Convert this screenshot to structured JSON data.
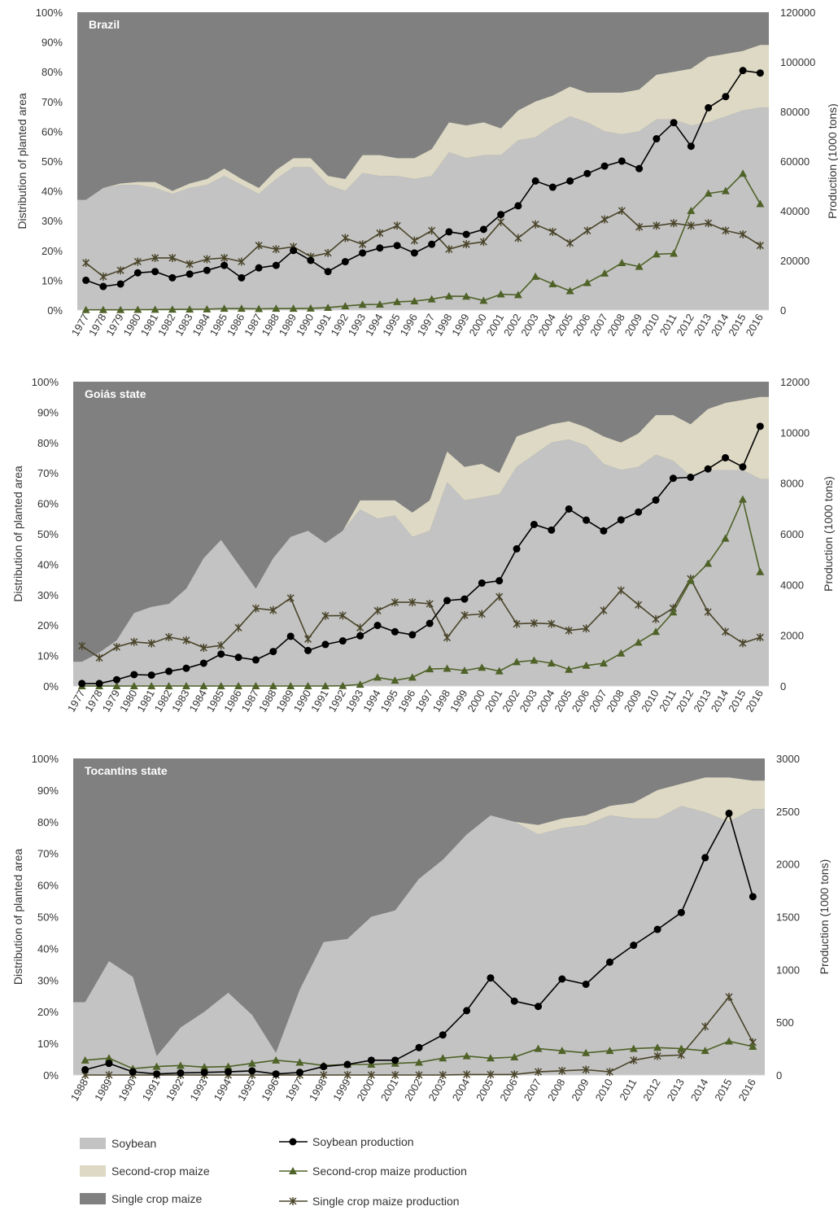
{
  "colors": {
    "soybean_area": "#c3c3c3",
    "second_crop_area": "#ddd9c4",
    "single_crop_area": "#808080",
    "soybean_line": "#000000",
    "second_crop_line": "#4f6228",
    "single_crop_line": "#4a452a"
  },
  "legend": {
    "soybean": "Soybean",
    "second_crop": "Second-crop maize",
    "single_crop": "Single crop maize",
    "soybean_prod": "Soybean production",
    "second_crop_prod": "Second-crop maize production",
    "single_crop_prod": "Single crop maize production"
  },
  "chart_data": [
    {
      "type": "area",
      "title": "Brazil",
      "ylabel": "Distribution of planted area",
      "y2label": "Production (1000 tons)",
      "ylim": [
        0,
        100
      ],
      "y2lim": [
        0,
        120000
      ],
      "yticks": [
        "0%",
        "10%",
        "20%",
        "30%",
        "40%",
        "50%",
        "60%",
        "70%",
        "80%",
        "90%",
        "100%"
      ],
      "y2ticks": [
        "0",
        "20000",
        "40000",
        "60000",
        "80000",
        "100000",
        "120000"
      ],
      "x": [
        "1977",
        "1978",
        "1979",
        "1980",
        "1981",
        "1982",
        "1983",
        "1984",
        "1985",
        "1986",
        "1987",
        "1988",
        "1989",
        "1990",
        "1991",
        "1992",
        "1993",
        "1994",
        "1995",
        "1996",
        "1997",
        "1998",
        "1999",
        "2000",
        "2001",
        "2002",
        "2003",
        "2004",
        "2005",
        "2006",
        "2007",
        "2008",
        "2009",
        "2010",
        "2011",
        "2012",
        "2013",
        "2014",
        "2015",
        "2016"
      ],
      "area_series": [
        {
          "name": "Soybean",
          "values": [
            37,
            41,
            42,
            42,
            41,
            39,
            41,
            42,
            45,
            42,
            39,
            44,
            48,
            48,
            42,
            40,
            46,
            45,
            45,
            44,
            45,
            53,
            51,
            52,
            52,
            57,
            58,
            62,
            65,
            63,
            60,
            59,
            60,
            64,
            64,
            62,
            63,
            65,
            67,
            68
          ]
        },
        {
          "name": "Second-crop maize",
          "values": [
            0,
            0,
            0.5,
            1,
            2,
            1,
            1.5,
            2,
            2.5,
            2,
            2,
            3,
            3,
            3,
            3,
            4,
            6,
            7,
            6,
            7,
            9,
            10,
            11,
            11,
            9,
            10,
            12,
            10,
            10,
            10,
            13,
            14,
            14,
            15,
            16,
            19,
            22,
            21,
            20,
            21
          ]
        },
        {
          "name": "Single crop maize",
          "values": [
            63,
            59,
            57.5,
            57,
            57,
            60,
            57.5,
            56,
            52.5,
            56,
            59,
            53,
            49,
            49,
            55,
            56,
            48,
            48,
            49,
            49,
            46,
            37,
            38,
            37,
            39,
            33,
            30,
            28,
            25,
            27,
            27,
            27,
            26,
            21,
            20,
            19,
            15,
            14,
            13,
            11
          ]
        }
      ],
      "line_series": [
        {
          "name": "Soybean production",
          "values": [
            12000,
            9500,
            10500,
            15000,
            15500,
            13000,
            14500,
            16000,
            18000,
            13000,
            17000,
            18000,
            24000,
            20000,
            15500,
            19500,
            23000,
            25000,
            26000,
            23000,
            26500,
            31500,
            30500,
            32500,
            38500,
            42000,
            52000,
            49500,
            52000,
            55000,
            58000,
            60000,
            57000,
            69000,
            75500,
            66000,
            81500,
            86000,
            96500,
            95500
          ]
        },
        {
          "name": "Second-crop maize production",
          "values": [
            100,
            100,
            100,
            150,
            200,
            250,
            300,
            350,
            600,
            600,
            500,
            600,
            600,
            700,
            1000,
            1600,
            2200,
            2300,
            3300,
            3600,
            4400,
            5600,
            5500,
            3800,
            6400,
            6100,
            13500,
            10500,
            7700,
            11000,
            14800,
            19000,
            17500,
            22500,
            22800,
            40000,
            47000,
            48000,
            55000,
            42800
          ]
        },
        {
          "name": "Single crop maize production",
          "values": [
            19000,
            13500,
            16000,
            19500,
            21000,
            21000,
            18500,
            20500,
            21000,
            19500,
            26000,
            24500,
            25500,
            21500,
            23000,
            29000,
            26500,
            31000,
            34000,
            28000,
            32000,
            24500,
            26500,
            27500,
            35500,
            29000,
            34500,
            31500,
            27000,
            32000,
            36500,
            40000,
            33500,
            34000,
            35000,
            34000,
            35000,
            32000,
            30500,
            26000
          ]
        }
      ]
    },
    {
      "type": "area",
      "title": "Goiás state",
      "ylabel": "Distribution of planted area",
      "y2label": "Production (1000 tons)",
      "ylim": [
        0,
        100
      ],
      "y2lim": [
        0,
        12000
      ],
      "yticks": [
        "0%",
        "10%",
        "20%",
        "30%",
        "40%",
        "50%",
        "60%",
        "70%",
        "80%",
        "90%",
        "100%"
      ],
      "y2ticks": [
        "0",
        "2000",
        "4000",
        "6000",
        "8000",
        "10000",
        "12000"
      ],
      "x": [
        "1977",
        "1978",
        "1979",
        "1980",
        "1981",
        "1982",
        "1983",
        "1984",
        "1985",
        "1986",
        "1987",
        "1988",
        "1989",
        "1990",
        "1991",
        "1992",
        "1993",
        "1994",
        "1995",
        "1996",
        "1997",
        "1998",
        "1999",
        "2000",
        "2001",
        "2002",
        "2003",
        "2004",
        "2005",
        "2006",
        "2007",
        "2008",
        "2009",
        "2010",
        "2011",
        "2012",
        "2013",
        "2014",
        "2015",
        "2016"
      ],
      "area_series": [
        {
          "name": "Soybean",
          "values": [
            8,
            11,
            15,
            24,
            26,
            27,
            32,
            42,
            48,
            40,
            32,
            42,
            49,
            51,
            47,
            51,
            58,
            55,
            56,
            49,
            51,
            67,
            61,
            62,
            63,
            72,
            76,
            80,
            81,
            79,
            73,
            71,
            72,
            76,
            74,
            69,
            71,
            71,
            71,
            68
          ]
        },
        {
          "name": "Second-crop maize",
          "values": [
            0,
            0,
            0,
            0,
            0,
            0,
            0,
            0,
            0,
            0,
            0,
            0,
            0,
            0,
            0,
            0,
            3,
            6,
            5,
            8,
            10,
            10,
            11,
            11,
            7,
            10,
            8,
            6,
            6,
            6,
            9,
            9,
            11,
            13,
            15,
            17,
            20,
            22,
            23,
            27
          ]
        },
        {
          "name": "Single crop maize",
          "values": [
            92,
            89,
            85,
            76,
            74,
            73,
            68,
            58,
            52,
            60,
            68,
            58,
            51,
            49,
            53,
            49,
            39,
            39,
            39,
            43,
            39,
            23,
            28,
            27,
            30,
            18,
            16,
            14,
            13,
            15,
            18,
            20,
            17,
            11,
            11,
            14,
            9,
            7,
            6,
            5
          ]
        }
      ],
      "line_series": [
        {
          "name": "Soybean production",
          "values": [
            100,
            100,
            250,
            450,
            430,
            580,
            700,
            900,
            1260,
            1130,
            1030,
            1360,
            1960,
            1400,
            1640,
            1780,
            1980,
            2390,
            2140,
            2020,
            2470,
            3370,
            3430,
            4060,
            4150,
            5410,
            6370,
            6150,
            6980,
            6540,
            6120,
            6550,
            6860,
            7330,
            8190,
            8230,
            8560,
            9000,
            8640,
            10240
          ]
        },
        {
          "name": "Second-crop maize production",
          "values": [
            0,
            0,
            0,
            0,
            0,
            0,
            0,
            0,
            0,
            0,
            0,
            0,
            0,
            0,
            0,
            10,
            60,
            340,
            220,
            340,
            670,
            690,
            610,
            730,
            590,
            950,
            1010,
            900,
            650,
            810,
            900,
            1290,
            1720,
            2140,
            2910,
            4150,
            4830,
            5820,
            7360,
            4500
          ]
        },
        {
          "name": "Single crop maize production",
          "values": [
            1580,
            1110,
            1540,
            1740,
            1680,
            1930,
            1800,
            1510,
            1600,
            2300,
            3060,
            2990,
            3470,
            1850,
            2770,
            2780,
            2300,
            2970,
            3300,
            3300,
            3240,
            1910,
            2790,
            2840,
            3520,
            2450,
            2480,
            2450,
            2190,
            2270,
            2980,
            3770,
            3200,
            2640,
            3070,
            4230,
            2920,
            2140,
            1690,
            1920
          ]
        }
      ]
    },
    {
      "type": "area",
      "title": "Tocantins state",
      "ylabel": "Distribution of planted area",
      "y2label": "Production (1000 tons)",
      "ylim": [
        0,
        100
      ],
      "y2lim": [
        0,
        3000
      ],
      "yticks": [
        "0%",
        "10%",
        "20%",
        "30%",
        "40%",
        "50%",
        "60%",
        "70%",
        "80%",
        "90%",
        "100%"
      ],
      "y2ticks": [
        "0",
        "500",
        "1000",
        "1500",
        "2000",
        "2500",
        "3000"
      ],
      "x": [
        "1988",
        "1989",
        "1990",
        "1991",
        "1992",
        "1993",
        "1994",
        "1995",
        "1996",
        "1997",
        "1998",
        "1999",
        "2000",
        "2001",
        "2002",
        "2003",
        "2004",
        "2005",
        "2006",
        "2007",
        "2008",
        "2009",
        "2010",
        "2011",
        "2012",
        "2013",
        "2014",
        "2015",
        "2016"
      ],
      "area_series": [
        {
          "name": "Soybean",
          "values": [
            23,
            36,
            31,
            6,
            15,
            20,
            26,
            19,
            7,
            27,
            42,
            43,
            50,
            52,
            62,
            68,
            76,
            82,
            80,
            76,
            78,
            79,
            82,
            81,
            81,
            85,
            83,
            80,
            84
          ]
        },
        {
          "name": "Second-crop maize",
          "values": [
            0,
            0,
            0,
            0,
            0,
            0,
            0,
            0,
            0,
            0,
            0,
            0,
            0,
            0,
            0,
            0,
            0,
            0,
            0,
            3,
            3,
            3,
            3,
            5,
            9,
            7,
            11,
            14,
            9
          ]
        },
        {
          "name": "Single crop maize",
          "values": [
            77,
            64,
            69,
            94,
            85,
            80,
            74,
            81,
            93,
            73,
            58,
            57,
            50,
            48,
            38,
            32,
            24,
            18,
            20,
            21,
            19,
            18,
            15,
            14,
            10,
            8,
            6,
            6,
            7
          ]
        }
      ],
      "line_series": [
        {
          "name": "Soybean production",
          "values": [
            50,
            110,
            30,
            10,
            20,
            25,
            30,
            40,
            10,
            25,
            80,
            100,
            140,
            140,
            260,
            380,
            610,
            920,
            700,
            650,
            910,
            860,
            1070,
            1230,
            1380,
            1540,
            2060,
            2480,
            1690
          ]
        },
        {
          "name": "Second-crop maize production",
          "values": [
            140,
            160,
            60,
            80,
            90,
            75,
            80,
            110,
            140,
            120,
            90,
            100,
            100,
            110,
            120,
            160,
            180,
            160,
            170,
            250,
            230,
            210,
            230,
            250,
            260,
            250,
            230,
            320,
            270
          ]
        },
        {
          "name": "Single crop maize production",
          "values": [
            0,
            0,
            0,
            0,
            0,
            0,
            0,
            0,
            0,
            0,
            0,
            0,
            0,
            0,
            0,
            0,
            5,
            5,
            5,
            30,
            40,
            50,
            30,
            140,
            180,
            190,
            460,
            740,
            310
          ]
        }
      ]
    }
  ]
}
